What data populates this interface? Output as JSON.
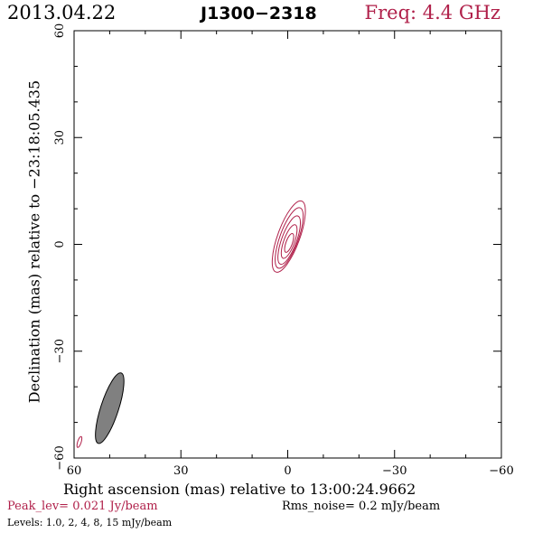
{
  "header": {
    "date": "2013.04.22",
    "source": "J1300−2318",
    "freq": "Freq: 4.4 GHz"
  },
  "footer": {
    "peak": "Peak_lev=  0.021 Jy/beam",
    "rms": "Rms_noise=   0.2 mJy/beam",
    "levels": "Levels: 1.0,    2,    4,    8,   15 mJy/beam"
  },
  "colors": {
    "contour": "#b0204a",
    "beam_fill": "#808080"
  },
  "chart_data": {
    "type": "contour",
    "xlabel": "Right ascension (mas) relative to 13:00:24.9662",
    "ylabel": "Declination (mas) relative to −23:18:05.435",
    "xlim": [
      60,
      -60
    ],
    "ylim": [
      -60,
      60
    ],
    "x_ticks": [
      60,
      30,
      0,
      -30,
      -60
    ],
    "x_tick_labels": [
      "60",
      "30",
      "0",
      "−30",
      "−60"
    ],
    "y_ticks": [
      60,
      30,
      0,
      -30,
      -60
    ],
    "y_tick_labels": [
      "60",
      "30",
      "0",
      "−30",
      "−60"
    ],
    "contour_levels_mJy": [
      1.0,
      2,
      4,
      8,
      15
    ],
    "contours": [
      {
        "level": 1.0,
        "center": [
          -0.3,
          2.2
        ],
        "semi_major": 10.6,
        "semi_minor": 3.1,
        "pa_deg": 20
      },
      {
        "level": 2,
        "center": [
          -0.4,
          1.8
        ],
        "semi_major": 9.0,
        "semi_minor": 2.6,
        "pa_deg": 20
      },
      {
        "level": 4,
        "center": [
          -0.4,
          1.2
        ],
        "semi_major": 7.2,
        "semi_minor": 2.1,
        "pa_deg": 20
      },
      {
        "level": 8,
        "center": [
          -0.4,
          0.8
        ],
        "semi_major": 5.0,
        "semi_minor": 1.5,
        "pa_deg": 20
      },
      {
        "level": 15,
        "center": [
          -0.4,
          0.4
        ],
        "semi_major": 2.8,
        "semi_minor": 0.9,
        "pa_deg": 20
      }
    ],
    "beam": {
      "center": [
        50,
        -46
      ],
      "semi_major": 10.4,
      "semi_minor": 2.5,
      "pa_deg": 18
    },
    "beam_contour": {
      "center": [
        58.5,
        -55.5
      ],
      "semi_major": 1.6,
      "semi_minor": 0.5,
      "pa_deg": 18
    }
  }
}
